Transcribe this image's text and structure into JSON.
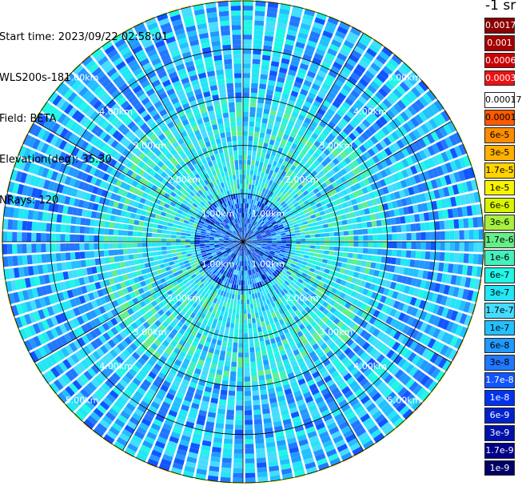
{
  "header": {
    "start_time": "Start time: 2023/09/22 02:58:01",
    "instrument": "WLS200s-181",
    "field": "Field: BETA",
    "elevation": "Elevation(deg): 35.30",
    "nrays": "NRays: 120"
  },
  "colorbar": {
    "unit_label": "-1 sr",
    "levels": [
      {
        "label": "0.0017",
        "color": "#8b0000",
        "text": "#ffffff"
      },
      {
        "label": "0.001",
        "color": "#a50000",
        "text": "#ffffff"
      },
      {
        "label": "0.0006",
        "color": "#cc0000",
        "text": "#ffffff"
      },
      {
        "label": "0.0003",
        "color": "#ee1111",
        "text": "#ffffff"
      },
      {
        "label": "0.00017",
        "color": "#ffffff",
        "text": "#000000"
      },
      {
        "label": "0.0001",
        "color": "#ff5a00",
        "text": "#000000"
      },
      {
        "label": "6e-5",
        "color": "#ff8c00",
        "text": "#000000"
      },
      {
        "label": "3e-5",
        "color": "#ffb000",
        "text": "#000000"
      },
      {
        "label": "1.7e-5",
        "color": "#ffd400",
        "text": "#000000"
      },
      {
        "label": "1e-5",
        "color": "#f8f400",
        "text": "#000000"
      },
      {
        "label": "6e-6",
        "color": "#d8f400",
        "text": "#000000"
      },
      {
        "label": "3e-6",
        "color": "#a8f040",
        "text": "#000000"
      },
      {
        "label": "1.7e-6",
        "color": "#66ee88",
        "text": "#000000"
      },
      {
        "label": "1e-6",
        "color": "#44f0bb",
        "text": "#000000"
      },
      {
        "label": "6e-7",
        "color": "#22f6e6",
        "text": "#000000"
      },
      {
        "label": "3e-7",
        "color": "#22e6f6",
        "text": "#000000"
      },
      {
        "label": "1.7e-7",
        "color": "#44ddff",
        "text": "#000000"
      },
      {
        "label": "1e-7",
        "color": "#22c0ff",
        "text": "#000000"
      },
      {
        "label": "6e-8",
        "color": "#2299ff",
        "text": "#000000"
      },
      {
        "label": "3e-8",
        "color": "#2277ff",
        "text": "#000000"
      },
      {
        "label": "1.7e-8",
        "color": "#1155ff",
        "text": "#ffffff"
      },
      {
        "label": "1e-8",
        "color": "#0033ee",
        "text": "#ffffff"
      },
      {
        "label": "6e-9",
        "color": "#0022cc",
        "text": "#ffffff"
      },
      {
        "label": "3e-9",
        "color": "#0011aa",
        "text": "#ffffff"
      },
      {
        "label": "1.7e-9",
        "color": "#000088",
        "text": "#ffffff"
      },
      {
        "label": "1e-9",
        "color": "#000066",
        "text": "#ffffff"
      }
    ]
  },
  "chart_data": {
    "type": "heatmap",
    "projection": "polar PPI",
    "field": "BETA",
    "elevation_deg": 35.3,
    "n_rays": 120,
    "range_rings_km": [
      1,
      2,
      3,
      4,
      5
    ],
    "max_range_km": 5.0,
    "range_ring_labels": [
      "1.00km",
      "2.00km",
      "3.00km",
      "4.00km",
      "5.00km"
    ],
    "spoke_interval_deg": 30,
    "value_scale": "log",
    "value_range": [
      1e-09,
      0.0017
    ],
    "approx_values_by_range": [
      {
        "range_km": [
          0,
          1
        ],
        "typical": 3e-08
      },
      {
        "range_km": [
          1,
          2
        ],
        "typical": 3e-07
      },
      {
        "range_km": [
          2,
          3
        ],
        "typical": 3e-07
      },
      {
        "range_km": [
          3,
          5
        ],
        "typical": 1e-07
      },
      {
        "range_km": [
          5,
          5.1
        ],
        "typical": 1e-05
      }
    ],
    "grid": true
  }
}
